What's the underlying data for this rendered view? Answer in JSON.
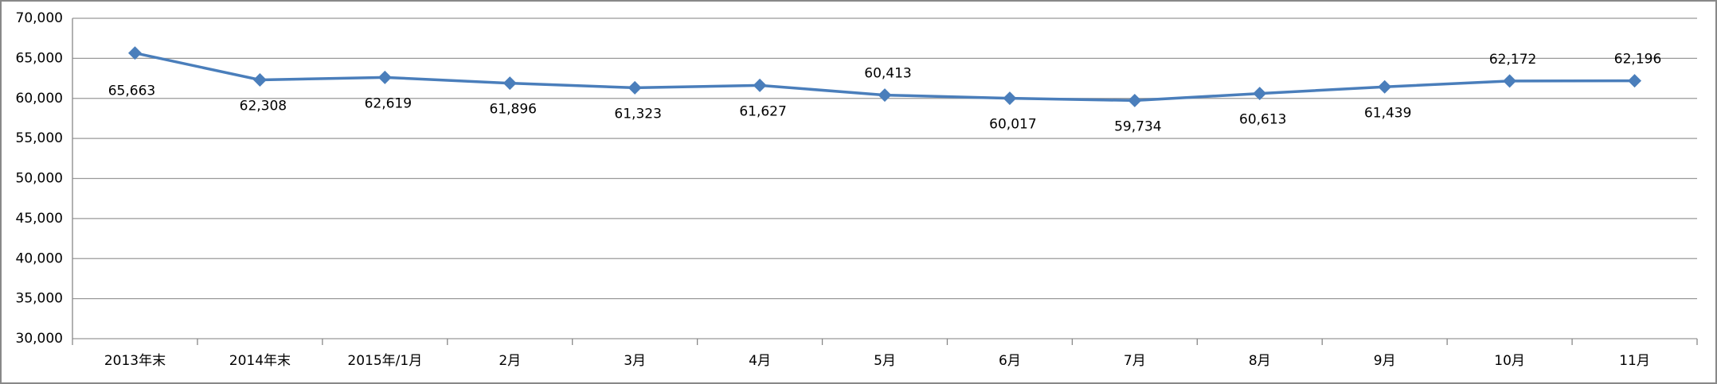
{
  "chart_data": {
    "type": "line",
    "categories": [
      "2013年末",
      "2014年末",
      "2015年/1月",
      "2月",
      "3月",
      "4月",
      "5月",
      "6月",
      "7月",
      "8月",
      "9月",
      "10月",
      "11月"
    ],
    "series": [
      {
        "color": "#4a7ebb",
        "values": [
          65663,
          62308,
          62619,
          61896,
          61323,
          61627,
          60413,
          60017,
          59734,
          60613,
          61439,
          62172,
          62196
        ],
        "value_labels": [
          "65,663",
          "62,308",
          "62,619",
          "61,896",
          "61,323",
          "61,627",
          "60,413",
          "60,017",
          "59,734",
          "60,613",
          "61,439",
          "62,172",
          "62,196"
        ]
      }
    ],
    "ylim": [
      30000,
      70000
    ],
    "yticks": [
      {
        "value": 30000,
        "label": "30,000"
      },
      {
        "value": 35000,
        "label": "35,000"
      },
      {
        "value": 40000,
        "label": "40,000"
      },
      {
        "value": 45000,
        "label": "45,000"
      },
      {
        "value": 50000,
        "label": "50,000"
      },
      {
        "value": 55000,
        "label": "55,000"
      },
      {
        "value": 60000,
        "label": "60,000"
      },
      {
        "value": 65000,
        "label": "65,000"
      },
      {
        "value": 70000,
        "label": "70,000"
      }
    ],
    "grid": true
  }
}
